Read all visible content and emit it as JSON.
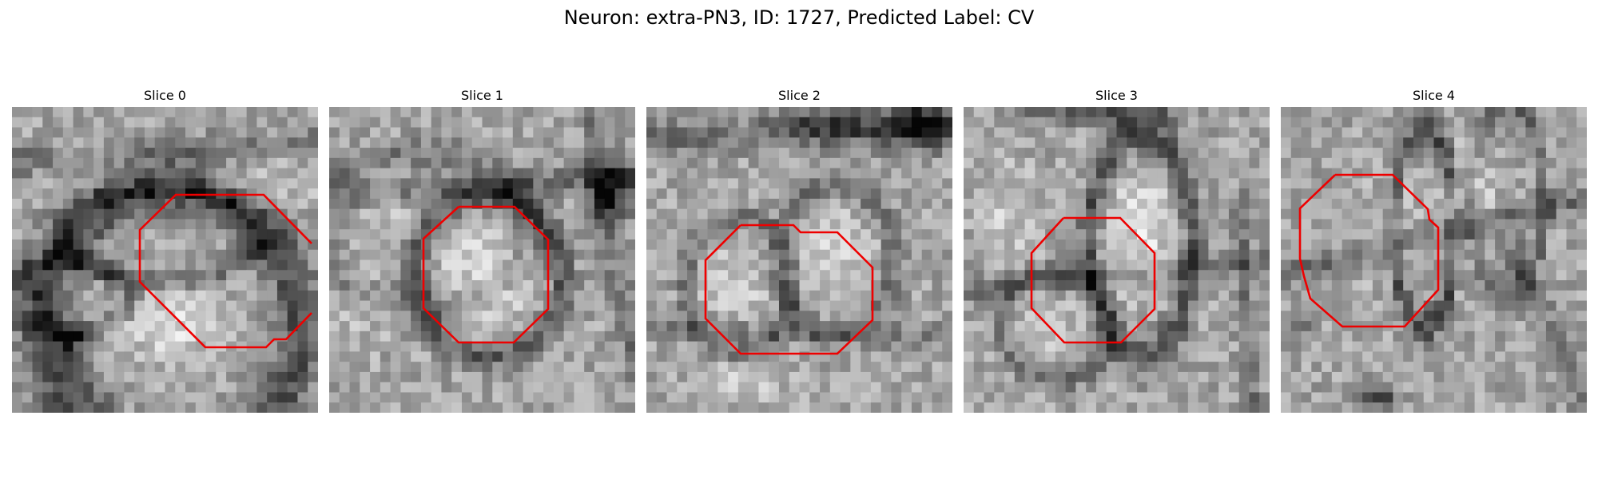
{
  "figure": {
    "title": "Neuron: extra-PN3, ID: 1727, Predicted Label: CV"
  },
  "contour_color": "#ee0000",
  "panels": [
    {
      "title": "Slice 0"
    },
    {
      "title": "Slice 1"
    },
    {
      "title": "Slice 2"
    },
    {
      "title": "Slice 3"
    },
    {
      "title": "Slice 4"
    }
  ]
}
